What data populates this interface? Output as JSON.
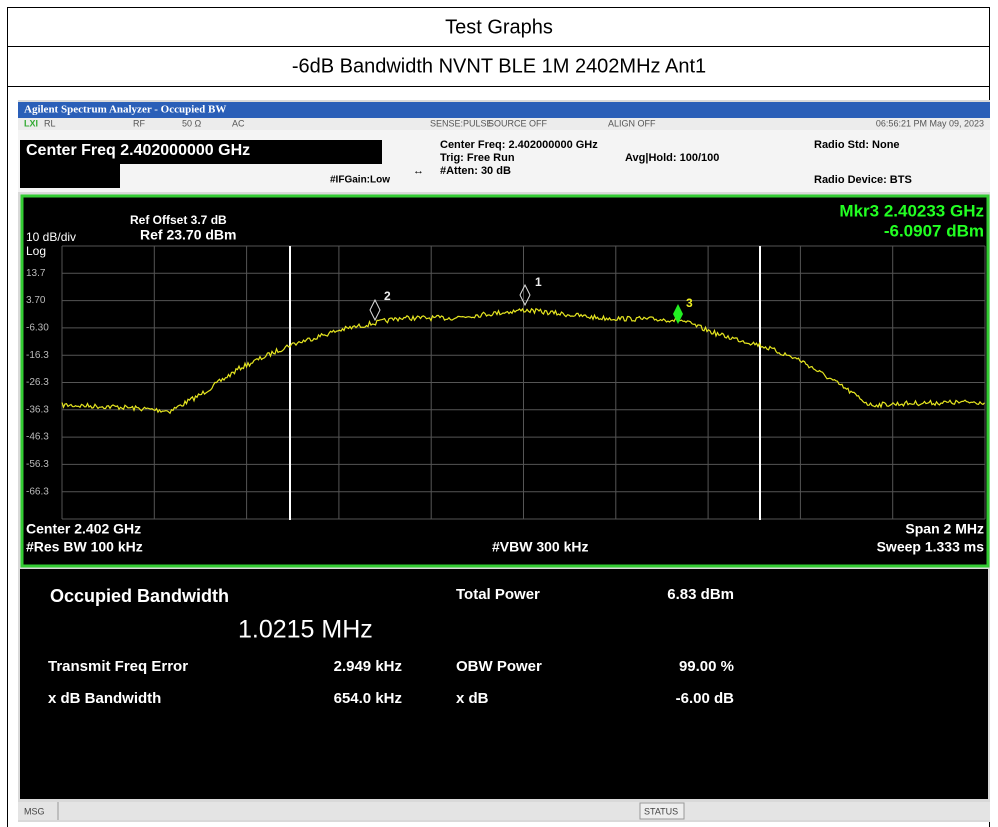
{
  "table": {
    "rows": [
      "Test Graphs",
      "-6dB Bandwidth NVNT BLE 1M 2402MHz Ant1"
    ]
  },
  "analyzer": {
    "window_title": "Agilent Spectrum Analyzer - Occupied BW",
    "status_bar": {
      "rl": "RL",
      "rf": "RF",
      "impedance": "50 Ω",
      "coupling": "AC",
      "sense": "SENSE:PULSE",
      "source": "SOURCE OFF",
      "align": "ALIGN OFF",
      "datetime": "06:56:21 PM May 09, 2023"
    },
    "settings": {
      "center_freq_box": "Center Freq 2.402000000 GHz",
      "center_freq": "Center Freq: 2.402000000 GHz",
      "trig": "Trig: Free Run",
      "atten": "#Atten: 30 dB",
      "avg_hold": "Avg|Hold: 100/100",
      "if_gain": "#IFGain:Low",
      "radio_std": "Radio Std: None",
      "radio_device": "Radio Device: BTS"
    },
    "display": {
      "ref_offset": "Ref Offset 3.7 dB",
      "ref_level": "Ref 23.70 dBm",
      "scale": "10 dB/div",
      "scale_type": "Log",
      "y_labels": [
        "13.7",
        "3.70",
        "-6.30",
        "-16.3",
        "-26.3",
        "-36.3",
        "-46.3",
        "-56.3",
        "-66.3"
      ],
      "marker_readout": {
        "label": "Mkr3  2.40233 GHz",
        "value": "-6.0907 dBm"
      },
      "markers": [
        "1",
        "2",
        "3"
      ],
      "center": "Center  2.402 GHz",
      "res_bw": "#Res BW  100 kHz",
      "vbw": "#VBW  300 kHz",
      "span": "Span 2 MHz",
      "sweep": "Sweep  1.333 ms"
    },
    "results": {
      "obw_label": "Occupied Bandwidth",
      "obw_value": "1.0215 MHz",
      "freq_error_label": "Transmit Freq Error",
      "freq_error_value": "2.949 kHz",
      "xdb_bw_label": "x dB Bandwidth",
      "xdb_bw_value": "654.0 kHz",
      "total_power_label": "Total Power",
      "total_power_value": "6.83 dBm",
      "obw_power_label": "OBW Power",
      "obw_power_value": "99.00 %",
      "xdb_label": "x dB",
      "xdb_value": "-6.00 dB"
    },
    "footer": {
      "msg": "MSG",
      "status": "STATUS"
    }
  }
}
